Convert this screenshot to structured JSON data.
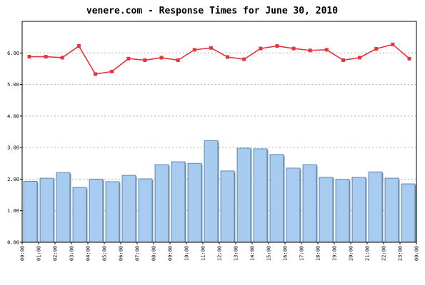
{
  "chart_data": {
    "type": "bar",
    "title": "venere.com - Response Times for June 30, 2010",
    "xlabel": "",
    "ylabel": "",
    "ylim": [
      0,
      7
    ],
    "yticks": [
      "0.00",
      "1.00",
      "2.00",
      "3.00",
      "4.00",
      "5.00",
      "6.00"
    ],
    "categories": [
      "00:00",
      "01:00",
      "02:00",
      "03:00",
      "04:00",
      "05:00",
      "06:00",
      "07:00",
      "08:00",
      "09:00",
      "10:00",
      "11:00",
      "12:00",
      "13:00",
      "14:00",
      "15:00",
      "16:00",
      "17:00",
      "18:00",
      "19:00",
      "20:00",
      "21:00",
      "22:00",
      "23:00"
    ],
    "xtick_labels": [
      "00:00",
      "01:00",
      "02:00",
      "03:00",
      "04:00",
      "05:00",
      "06:00",
      "07:00",
      "08:00",
      "09:00",
      "10:00",
      "11:00",
      "12:00",
      "13:00",
      "14:00",
      "15:00",
      "16:00",
      "17:00",
      "18:00",
      "19:00",
      "20:00",
      "21:00",
      "22:00",
      "23:00",
      "00:00"
    ],
    "grid": "horizontal-dotted",
    "series": [
      {
        "type": "bar",
        "color": "#a8ccf0",
        "values": [
          1.93,
          2.03,
          2.21,
          1.74,
          2.0,
          1.92,
          2.12,
          2.01,
          2.46,
          2.55,
          2.5,
          3.22,
          2.26,
          2.98,
          2.96,
          2.78,
          2.35,
          2.46,
          2.06,
          1.99,
          2.06,
          2.23,
          2.03,
          1.85
        ]
      },
      {
        "type": "line",
        "color": "#e8333a",
        "values": [
          5.88,
          5.88,
          5.85,
          6.22,
          5.33,
          5.41,
          5.82,
          5.77,
          5.85,
          5.77,
          6.1,
          6.16,
          5.87,
          5.8,
          6.14,
          6.22,
          6.14,
          6.08,
          6.1,
          5.77,
          5.85,
          6.13,
          6.27,
          5.82
        ]
      }
    ]
  }
}
